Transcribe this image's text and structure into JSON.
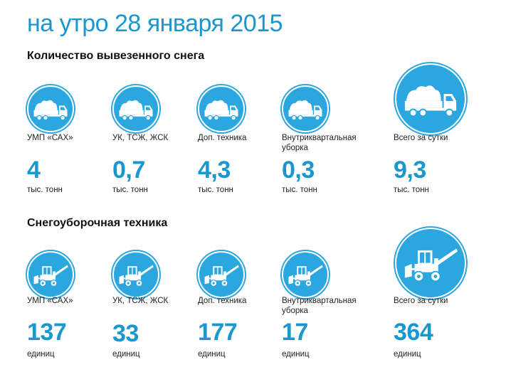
{
  "title": "на утро 28 января 2015",
  "snow": {
    "heading": "Количество вывезенного снега",
    "items": [
      {
        "label": "УМП «САХ»",
        "value": "4",
        "unit": "тыс. тонн"
      },
      {
        "label": "УК, ТСЖ, ЖСК",
        "value": "0,7",
        "unit": "тыс. тонн"
      },
      {
        "label": "Доп. техника",
        "value": "4,3",
        "unit": "тыс. тонн"
      },
      {
        "label": "Внутриквартальная уборка",
        "value": "0,3",
        "unit": "тыс. тонн"
      },
      {
        "label": "Всего за сутки",
        "value": "9,3",
        "unit": "тыс. тонн"
      }
    ]
  },
  "machines": {
    "heading": "Снегоуборочная техника",
    "items": [
      {
        "label": "УМП «САХ»",
        "value": "137",
        "unit": "единиц"
      },
      {
        "label": "УК, ТСЖ, ЖСК",
        "value": "33",
        "unit": "единиц"
      },
      {
        "label": "Доп. техника",
        "value": "177",
        "unit": "единиц"
      },
      {
        "label": "Внутриквартальная уборка",
        "value": "17",
        "unit": "единиц"
      },
      {
        "label": "Всего за сутки",
        "value": "364",
        "unit": "единиц"
      }
    ]
  },
  "colors": {
    "accent": "#1a97cf",
    "circle": "#2ba6de"
  },
  "icons": {
    "snow": "dump-truck-icon",
    "machines": "snowplow-loader-icon"
  }
}
